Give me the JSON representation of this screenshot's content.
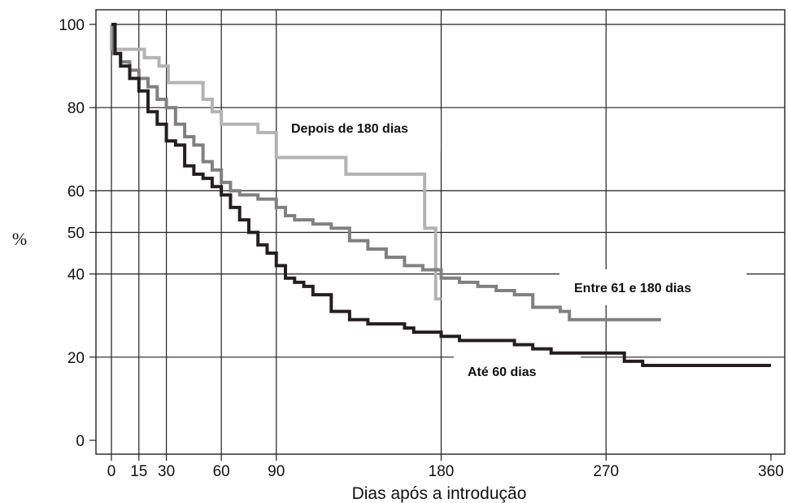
{
  "chart_data": {
    "type": "line",
    "step": true,
    "xlabel": "Dias após a introdução",
    "ylabel": "%",
    "xlim": [
      0,
      360
    ],
    "ylim": [
      0,
      100
    ],
    "x_ticks": [
      0,
      15,
      30,
      60,
      90,
      180,
      270,
      360
    ],
    "y_ticks": [
      0,
      20,
      40,
      50,
      60,
      80,
      100
    ],
    "x_gridlines": [
      15,
      30,
      60,
      90,
      180,
      270
    ],
    "y_gridlines": [
      20,
      40,
      50,
      60,
      80
    ],
    "grid": true,
    "series": [
      {
        "name": "Depois de 180 dias",
        "color": "#b3b3b3",
        "points": [
          [
            0,
            100
          ],
          [
            0,
            94
          ],
          [
            18,
            94
          ],
          [
            18,
            92
          ],
          [
            26,
            92
          ],
          [
            26,
            90
          ],
          [
            31,
            90
          ],
          [
            31,
            86
          ],
          [
            50,
            86
          ],
          [
            50,
            82
          ],
          [
            55,
            82
          ],
          [
            55,
            79
          ],
          [
            60,
            79
          ],
          [
            60,
            76
          ],
          [
            80,
            76
          ],
          [
            80,
            74
          ],
          [
            90,
            74
          ],
          [
            90,
            68
          ],
          [
            128,
            68
          ],
          [
            128,
            64
          ],
          [
            171,
            64
          ],
          [
            171,
            51
          ],
          [
            177,
            51
          ],
          [
            177,
            34
          ],
          [
            180,
            34
          ]
        ]
      },
      {
        "name": "Entre 61 e 180  dias",
        "color": "#808080",
        "points": [
          [
            0,
            100
          ],
          [
            1,
            93
          ],
          [
            5,
            91
          ],
          [
            10,
            89
          ],
          [
            15,
            87
          ],
          [
            20,
            85
          ],
          [
            25,
            82
          ],
          [
            30,
            80
          ],
          [
            35,
            76
          ],
          [
            40,
            73
          ],
          [
            45,
            71
          ],
          [
            50,
            67
          ],
          [
            55,
            65
          ],
          [
            60,
            62
          ],
          [
            65,
            60
          ],
          [
            70,
            59
          ],
          [
            80,
            58
          ],
          [
            85,
            58
          ],
          [
            90,
            56
          ],
          [
            95,
            54
          ],
          [
            100,
            53
          ],
          [
            110,
            52
          ],
          [
            120,
            51
          ],
          [
            130,
            48
          ],
          [
            140,
            46
          ],
          [
            150,
            44
          ],
          [
            160,
            42
          ],
          [
            170,
            41
          ],
          [
            180,
            39
          ],
          [
            190,
            38
          ],
          [
            200,
            37
          ],
          [
            210,
            36
          ],
          [
            220,
            35
          ],
          [
            230,
            32
          ],
          [
            245,
            31
          ],
          [
            250,
            29
          ],
          [
            300,
            29
          ]
        ]
      },
      {
        "name": "Até 60 dias",
        "color": "#231f20",
        "points": [
          [
            0,
            100
          ],
          [
            2,
            93
          ],
          [
            5,
            90
          ],
          [
            10,
            87
          ],
          [
            15,
            84
          ],
          [
            20,
            79
          ],
          [
            25,
            76
          ],
          [
            30,
            72
          ],
          [
            35,
            71
          ],
          [
            40,
            66
          ],
          [
            45,
            64
          ],
          [
            50,
            63
          ],
          [
            55,
            61
          ],
          [
            60,
            59
          ],
          [
            65,
            56
          ],
          [
            70,
            53
          ],
          [
            75,
            50
          ],
          [
            80,
            47
          ],
          [
            85,
            45
          ],
          [
            90,
            42
          ],
          [
            95,
            39
          ],
          [
            100,
            38
          ],
          [
            105,
            37
          ],
          [
            110,
            35
          ],
          [
            120,
            31
          ],
          [
            130,
            29
          ],
          [
            140,
            28
          ],
          [
            160,
            27
          ],
          [
            165,
            26
          ],
          [
            170,
            26
          ],
          [
            180,
            25
          ],
          [
            190,
            24
          ],
          [
            210,
            24
          ],
          [
            220,
            23
          ],
          [
            230,
            22
          ],
          [
            240,
            21
          ],
          [
            270,
            21
          ],
          [
            280,
            19
          ],
          [
            290,
            18
          ],
          [
            360,
            18
          ]
        ]
      }
    ]
  },
  "labels": {
    "depois": "Depois de 180 dias",
    "entre": "Entre 61 e 180  dias",
    "ate": "Até 60 dias"
  }
}
